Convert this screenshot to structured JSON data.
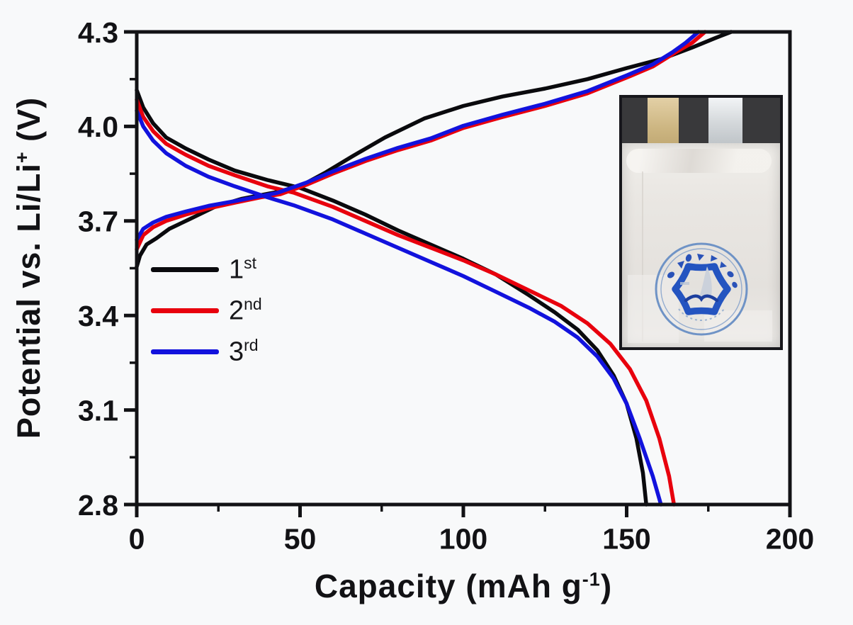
{
  "figure": {
    "background": "#f8f9fa",
    "axis_color": "#121215"
  },
  "chart_data": {
    "type": "line",
    "title": "",
    "xlabel": {
      "prefix": "Capacity (mAh g",
      "sup": "-1",
      "suffix": ")"
    },
    "ylabel": {
      "prefix": "Potential vs. Li/Li",
      "sup": "+",
      "suffix": " (V)"
    },
    "xlim": [
      0,
      200
    ],
    "ylim": [
      2.8,
      4.3
    ],
    "xtick_labels": [
      "0",
      "50",
      "100",
      "150",
      "200"
    ],
    "xticks": [
      0,
      50,
      100,
      150,
      200
    ],
    "xminor": [
      25,
      75,
      125,
      175
    ],
    "ytick_labels": [
      "4.3",
      "4.0",
      "3.7",
      "3.4",
      "3.1",
      "2.8"
    ],
    "yticks": [
      4.3,
      4.0,
      3.7,
      3.4,
      3.1,
      2.8
    ],
    "yminor": [
      4.15,
      3.85,
      3.55,
      3.25,
      2.95
    ],
    "grid": false,
    "legend_position": "center-left",
    "legend": [
      {
        "base": "1",
        "sup": "st",
        "color": "#0a0a0d"
      },
      {
        "base": "2",
        "sup": "nd",
        "color": "#e8000d"
      },
      {
        "base": "3",
        "sup": "rd",
        "color": "#1212dd"
      }
    ],
    "series": [
      {
        "name": "cycle-1-charge",
        "color": "#0a0a0d",
        "points": [
          [
            0,
            3.555
          ],
          [
            1,
            3.59
          ],
          [
            3,
            3.625
          ],
          [
            6,
            3.645
          ],
          [
            10,
            3.675
          ],
          [
            16,
            3.705
          ],
          [
            24,
            3.745
          ],
          [
            32,
            3.77
          ],
          [
            42,
            3.79
          ],
          [
            50,
            3.81
          ],
          [
            58,
            3.855
          ],
          [
            66,
            3.905
          ],
          [
            76,
            3.965
          ],
          [
            88,
            4.025
          ],
          [
            100,
            4.065
          ],
          [
            112,
            4.095
          ],
          [
            125,
            4.12
          ],
          [
            138,
            4.15
          ],
          [
            150,
            4.185
          ],
          [
            161,
            4.215
          ],
          [
            170,
            4.25
          ],
          [
            177,
            4.28
          ],
          [
            182,
            4.3
          ]
        ]
      },
      {
        "name": "cycle-1-discharge",
        "color": "#0a0a0d",
        "points": [
          [
            0,
            4.115
          ],
          [
            2,
            4.06
          ],
          [
            5,
            4.01
          ],
          [
            9,
            3.965
          ],
          [
            15,
            3.93
          ],
          [
            22,
            3.895
          ],
          [
            30,
            3.86
          ],
          [
            40,
            3.83
          ],
          [
            50,
            3.805
          ],
          [
            60,
            3.765
          ],
          [
            70,
            3.72
          ],
          [
            80,
            3.67
          ],
          [
            90,
            3.625
          ],
          [
            100,
            3.58
          ],
          [
            110,
            3.53
          ],
          [
            120,
            3.465
          ],
          [
            128,
            3.41
          ],
          [
            135,
            3.355
          ],
          [
            141,
            3.29
          ],
          [
            146,
            3.21
          ],
          [
            150,
            3.12
          ],
          [
            153,
            3.01
          ],
          [
            155,
            2.9
          ],
          [
            156,
            2.8
          ]
        ]
      },
      {
        "name": "cycle-2-charge",
        "color": "#e8000d",
        "points": [
          [
            0,
            3.61
          ],
          [
            2,
            3.655
          ],
          [
            5,
            3.68
          ],
          [
            9,
            3.7
          ],
          [
            15,
            3.72
          ],
          [
            22,
            3.74
          ],
          [
            30,
            3.758
          ],
          [
            38,
            3.775
          ],
          [
            44,
            3.785
          ],
          [
            52,
            3.815
          ],
          [
            60,
            3.85
          ],
          [
            70,
            3.89
          ],
          [
            80,
            3.925
          ],
          [
            90,
            3.955
          ],
          [
            100,
            3.995
          ],
          [
            112,
            4.03
          ],
          [
            125,
            4.065
          ],
          [
            138,
            4.105
          ],
          [
            150,
            4.155
          ],
          [
            158,
            4.19
          ],
          [
            165,
            4.235
          ],
          [
            170,
            4.265
          ],
          [
            174,
            4.3
          ]
        ]
      },
      {
        "name": "cycle-2-discharge",
        "color": "#e8000d",
        "points": [
          [
            0,
            4.085
          ],
          [
            2,
            4.03
          ],
          [
            5,
            3.985
          ],
          [
            9,
            3.945
          ],
          [
            15,
            3.91
          ],
          [
            22,
            3.875
          ],
          [
            30,
            3.845
          ],
          [
            40,
            3.81
          ],
          [
            48,
            3.79
          ],
          [
            60,
            3.745
          ],
          [
            70,
            3.7
          ],
          [
            80,
            3.655
          ],
          [
            90,
            3.615
          ],
          [
            100,
            3.575
          ],
          [
            110,
            3.53
          ],
          [
            120,
            3.48
          ],
          [
            130,
            3.43
          ],
          [
            138,
            3.375
          ],
          [
            145,
            3.31
          ],
          [
            151,
            3.23
          ],
          [
            156,
            3.13
          ],
          [
            160,
            3.01
          ],
          [
            163,
            2.89
          ],
          [
            164.5,
            2.8
          ]
        ]
      },
      {
        "name": "cycle-3-charge",
        "color": "#1212dd",
        "points": [
          [
            0,
            3.64
          ],
          [
            2,
            3.675
          ],
          [
            5,
            3.695
          ],
          [
            9,
            3.713
          ],
          [
            15,
            3.73
          ],
          [
            22,
            3.748
          ],
          [
            30,
            3.763
          ],
          [
            38,
            3.779
          ],
          [
            43,
            3.789
          ],
          [
            52,
            3.822
          ],
          [
            60,
            3.857
          ],
          [
            70,
            3.897
          ],
          [
            80,
            3.932
          ],
          [
            90,
            3.962
          ],
          [
            100,
            4.002
          ],
          [
            112,
            4.037
          ],
          [
            125,
            4.072
          ],
          [
            138,
            4.112
          ],
          [
            150,
            4.162
          ],
          [
            158,
            4.197
          ],
          [
            164,
            4.235
          ],
          [
            168,
            4.265
          ],
          [
            172,
            4.3
          ]
        ]
      },
      {
        "name": "cycle-3-discharge",
        "color": "#1212dd",
        "points": [
          [
            0,
            4.05
          ],
          [
            2,
            4.0
          ],
          [
            5,
            3.955
          ],
          [
            9,
            3.915
          ],
          [
            15,
            3.875
          ],
          [
            22,
            3.84
          ],
          [
            30,
            3.81
          ],
          [
            40,
            3.775
          ],
          [
            48,
            3.75
          ],
          [
            60,
            3.705
          ],
          [
            70,
            3.66
          ],
          [
            80,
            3.615
          ],
          [
            90,
            3.57
          ],
          [
            100,
            3.525
          ],
          [
            110,
            3.475
          ],
          [
            120,
            3.425
          ],
          [
            128,
            3.38
          ],
          [
            135,
            3.33
          ],
          [
            141,
            3.27
          ],
          [
            146,
            3.2
          ],
          [
            150,
            3.12
          ],
          [
            154,
            3.01
          ],
          [
            158,
            2.89
          ],
          [
            160.5,
            2.8
          ]
        ]
      }
    ]
  },
  "inset": {
    "background": "#39393b",
    "tab_gold": "#cdb682",
    "tab_silver": "#d3d7da",
    "pouch": "#e9e6e2",
    "logo_blue": "#2454c0",
    "logo_ring": "#6f93c6"
  }
}
